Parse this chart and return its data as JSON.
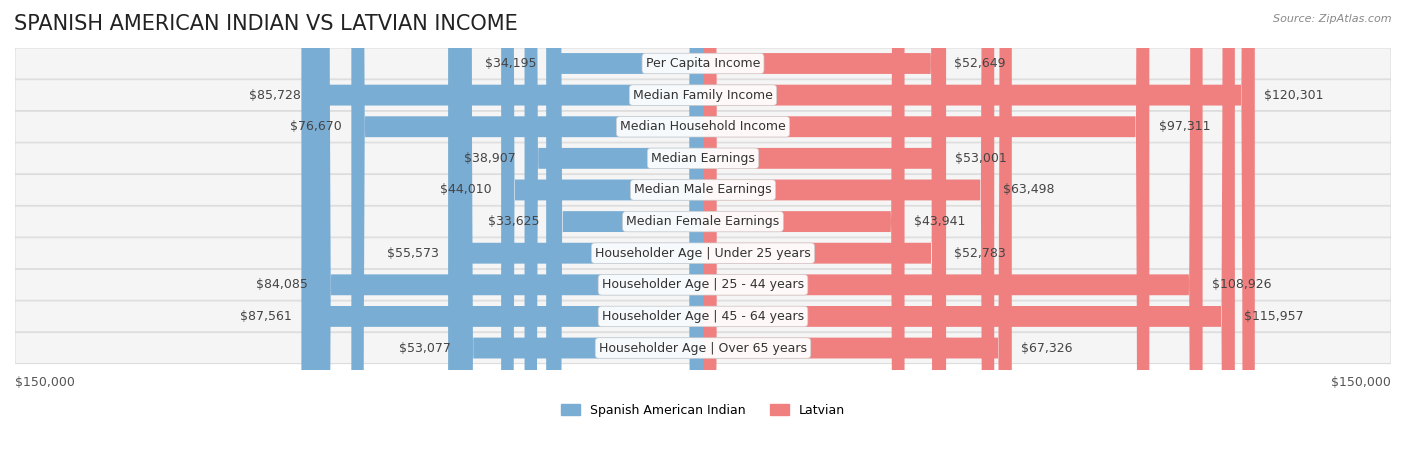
{
  "title": "SPANISH AMERICAN INDIAN VS LATVIAN INCOME",
  "source": "Source: ZipAtlas.com",
  "categories": [
    "Per Capita Income",
    "Median Family Income",
    "Median Household Income",
    "Median Earnings",
    "Median Male Earnings",
    "Median Female Earnings",
    "Householder Age | Under 25 years",
    "Householder Age | 25 - 44 years",
    "Householder Age | 45 - 64 years",
    "Householder Age | Over 65 years"
  ],
  "spanish_american_indian": [
    34195,
    85728,
    76670,
    38907,
    44010,
    33625,
    55573,
    84085,
    87561,
    53077
  ],
  "latvian": [
    52649,
    120301,
    97311,
    53001,
    63498,
    43941,
    52783,
    108926,
    115957,
    67326
  ],
  "spanish_labels": [
    "$34,195",
    "$85,728",
    "$76,670",
    "$38,907",
    "$44,010",
    "$33,625",
    "$55,573",
    "$84,085",
    "$87,561",
    "$53,077"
  ],
  "latvian_labels": [
    "$52,649",
    "$120,301",
    "$97,311",
    "$53,001",
    "$63,498",
    "$43,941",
    "$52,783",
    "$108,926",
    "$115,957",
    "$67,326"
  ],
  "spanish_color": "#7aadd4",
  "latvian_color": "#f08080",
  "spanish_color_dark": "#4a86c8",
  "latvian_color_dark": "#e05070",
  "bar_bg_color": "#f0f0f0",
  "row_bg_color": "#f5f5f5",
  "row_border_color": "#dddddd",
  "max_value": 150000,
  "xlabel_left": "$150,000",
  "xlabel_right": "$150,000",
  "legend_spanish": "Spanish American Indian",
  "legend_latvian": "Latvian",
  "title_fontsize": 15,
  "label_fontsize": 9,
  "category_fontsize": 9,
  "figsize": [
    14.06,
    4.67
  ],
  "dpi": 100
}
